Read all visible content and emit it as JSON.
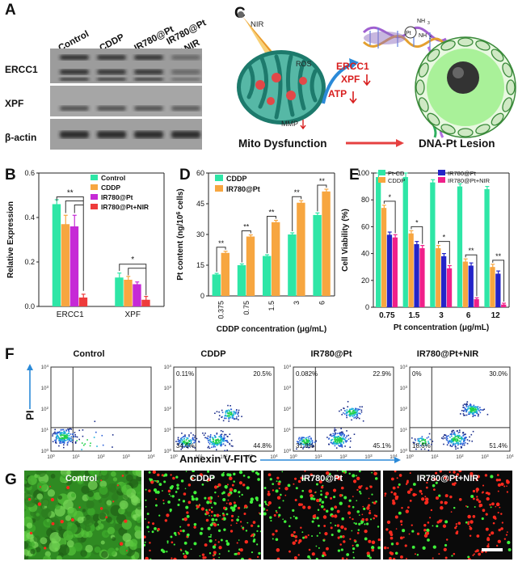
{
  "panels": {
    "A": {
      "label": "A",
      "columns": [
        "Control",
        "CDDP",
        "IR780@Pt",
        "IR780@Pt\n+NIR"
      ],
      "col_line1": [
        "Control",
        "CDDP",
        "IR780@Pt",
        "IR780@Pt"
      ],
      "col_line2": [
        "",
        "",
        "",
        "+NIR"
      ],
      "rows": [
        "ERCC1",
        "XPF",
        "β-actin"
      ],
      "band_intensity": {
        "ERCC1": [
          0.9,
          0.85,
          0.85,
          0.25
        ],
        "XPF": [
          0.55,
          0.55,
          0.55,
          0.45
        ],
        "beta_actin": [
          0.9,
          0.9,
          0.9,
          0.9
        ]
      }
    },
    "B": {
      "label": "B"
    },
    "C": {
      "label": "C",
      "nir": "NIR",
      "ros": "ROS",
      "atp": "ATP",
      "mmp": "MMP",
      "ercc1": "ERCC1",
      "xpf": "XPF",
      "pt": "Pt",
      "nh3a": "NH",
      "nh3b": "NH",
      "mito_caption": "Mito Dysfunction",
      "lesion_caption": "DNA-Pt Lesion",
      "colors": {
        "mito_fill": "#56b8a6",
        "mito_edge": "#1d7a6c",
        "red_text": "#d81e1e",
        "cell_fill": "#9ef08c",
        "cell_edge": "#3a8a3a"
      }
    },
    "D": {
      "label": "D"
    },
    "E": {
      "label": "E"
    },
    "F": {
      "label": "F",
      "titles": [
        "Control",
        "CDDP",
        "IR780@Pt",
        "IR780@Pt+NIR"
      ],
      "quadrants": [
        {
          "ul": "",
          "ur": "",
          "ll": "",
          "lr": ""
        },
        {
          "ul": "0.11%",
          "ur": "20.5%",
          "ll": "34.6%",
          "lr": "44.8%"
        },
        {
          "ul": "0.082%",
          "ur": "22.9%",
          "ll": "31.8%",
          "lr": "45.1%"
        },
        {
          "ul": "0%",
          "ur": "30.0%",
          "ll": "18.6%",
          "lr": "51.4%"
        }
      ],
      "yaxis": "PI",
      "xaxis": "Annexin V-FITC",
      "tick_base": "10",
      "tick_exps": [
        "0",
        "1",
        "2",
        "3",
        "4"
      ]
    },
    "G": {
      "label": "G",
      "titles": [
        "Control",
        "CDDP",
        "IR780@Pt",
        "IR780@Pt+NIR"
      ],
      "green_density": [
        1.0,
        0.45,
        0.3,
        0.08
      ],
      "red_density": [
        0.05,
        0.25,
        0.3,
        0.45
      ]
    }
  },
  "chart_data": [
    {
      "panel": "B",
      "type": "bar",
      "categories": [
        "ERCC1",
        "XPF"
      ],
      "ylabel": "Relative Expression",
      "xlabel": "",
      "ylim": [
        0,
        0.6
      ],
      "yticks": [
        "0.0",
        "0.2",
        "0.4",
        "0.6"
      ],
      "legend_position": "top-right",
      "series": [
        {
          "name": "Control",
          "color": "#2ee6a6",
          "values": [
            0.46,
            0.13
          ],
          "errors": [
            0.02,
            0.02
          ]
        },
        {
          "name": "CDDP",
          "color": "#f7a640",
          "values": [
            0.37,
            0.12
          ],
          "errors": [
            0.04,
            0.015
          ]
        },
        {
          "name": "IR780@Pt",
          "color": "#c62ad6",
          "values": [
            0.36,
            0.1
          ],
          "errors": [
            0.05,
            0.01
          ]
        },
        {
          "name": "IR780@Pt+NIR",
          "color": "#ee3b3b",
          "values": [
            0.04,
            0.03
          ],
          "errors": [
            0.015,
            0.015
          ]
        }
      ],
      "annotations": [
        "**",
        "*"
      ]
    },
    {
      "panel": "D",
      "type": "bar",
      "categories": [
        "0.375",
        "0.75",
        "1.5",
        "3",
        "6"
      ],
      "ylabel": "Pt content (ng/10",
      "ylabel_sup": "6",
      "ylabel_end": " cells)",
      "xlabel": "CDDP concentration (μg/mL)",
      "ylim": [
        0,
        60
      ],
      "yticks": [
        "0",
        "15",
        "30",
        "45",
        "60"
      ],
      "legend_position": "top-left",
      "series": [
        {
          "name": "CDDP",
          "color": "#2ee6a6",
          "values": [
            10.5,
            15,
            19.5,
            30,
            39.5
          ],
          "errors": [
            0.5,
            0.6,
            0.6,
            0.8,
            1.0
          ]
        },
        {
          "name": "IR780@Pt",
          "color": "#f7a640",
          "values": [
            21,
            29,
            36,
            45.5,
            51
          ],
          "errors": [
            0.8,
            0.8,
            0.9,
            1.0,
            1.1
          ]
        }
      ],
      "annotations": [
        "**",
        "**",
        "**",
        "**",
        "**"
      ]
    },
    {
      "panel": "E",
      "type": "bar",
      "categories": [
        "0.75",
        "1.5",
        "3",
        "6",
        "12"
      ],
      "ylabel": "Cell Viability (%)",
      "xlabel": "Pt concentration (μg/mL)",
      "ylim": [
        0,
        100
      ],
      "yticks": [
        "0",
        "20",
        "40",
        "60",
        "80",
        "100"
      ],
      "legend_position": "top",
      "series": [
        {
          "name": "Pt-CD",
          "color": "#2ee6a6",
          "values": [
            97,
            97,
            93,
            90,
            88
          ],
          "errors": [
            3,
            3,
            2,
            2,
            2
          ]
        },
        {
          "name": "CDDP",
          "color": "#f7a640",
          "values": [
            74,
            55,
            44,
            34,
            30
          ],
          "errors": [
            2,
            2,
            2,
            2,
            2
          ]
        },
        {
          "name": "IR780@Pt",
          "color": "#2424c8",
          "values": [
            54,
            47,
            38,
            31,
            25
          ],
          "errors": [
            2,
            2,
            2,
            2,
            2
          ]
        },
        {
          "name": "IR780@Pt+NIR",
          "color": "#f0208a",
          "values": [
            52,
            44,
            29,
            6,
            2
          ],
          "errors": [
            2,
            2,
            2,
            1,
            1
          ]
        }
      ],
      "annotations": [
        "*",
        "*",
        "*",
        "**",
        "**"
      ]
    }
  ]
}
